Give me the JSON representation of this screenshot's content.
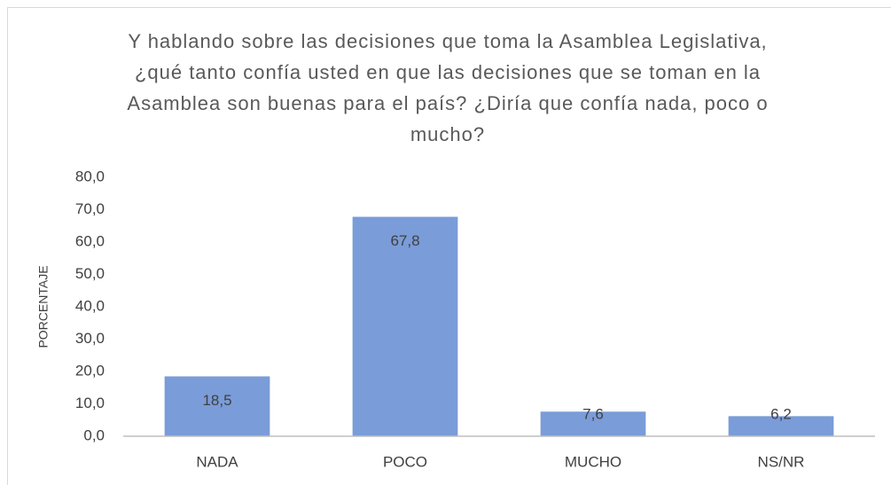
{
  "chart_data": {
    "type": "bar",
    "title": "Y hablando sobre las decisiones que toma la Asamblea Legislativa, ¿qué tanto confía usted en que las decisiones que se toman en la Asamblea son buenas para el país? ¿Diría que confía nada, poco o mucho?",
    "y_label": "PORCENTAJE",
    "categories": [
      "NADA",
      "POCO",
      "MUCHO",
      "NS/NR"
    ],
    "values": [
      18.5,
      67.8,
      7.6,
      6.2
    ],
    "value_labels": [
      "18,5",
      "67,8",
      "7,6",
      "6,2"
    ],
    "color": "#7a9cd8",
    "ylim": [
      0,
      80
    ],
    "yticks": [
      {
        "value": 0,
        "label": "0,0"
      },
      {
        "value": 10,
        "label": "10,0"
      },
      {
        "value": 20,
        "label": "20,0"
      },
      {
        "value": 30,
        "label": "30,0"
      },
      {
        "value": 40,
        "label": "40,0"
      },
      {
        "value": 50,
        "label": "50,0"
      },
      {
        "value": 60,
        "label": "60,0"
      },
      {
        "value": 70,
        "label": "70,0"
      },
      {
        "value": 80,
        "label": "80,0"
      }
    ],
    "grid": false
  }
}
